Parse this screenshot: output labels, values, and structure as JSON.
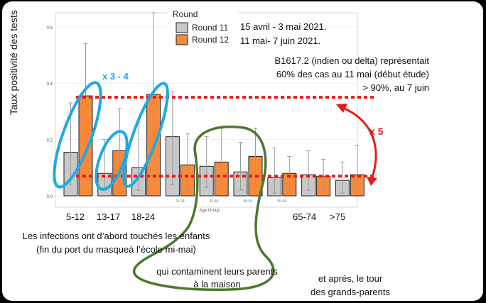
{
  "chart_data": {
    "type": "bar",
    "ylabel": "Taux positivité des tests",
    "xlabel": "Age Group",
    "ylim": [
      0,
      0.65
    ],
    "y_ticks": [
      "0.0",
      "0.2",
      "0.4",
      "0.6"
    ],
    "categories": [
      "5-12",
      "13-17",
      "18-24",
      "25-34",
      "35-44",
      "45-54",
      "55-64",
      "65-74",
      ">75"
    ],
    "category_labels_small": [
      "25-34",
      "35-44",
      "45-54",
      "55-64"
    ],
    "series": [
      {
        "name": "Round 11",
        "color": "#c8c8c8",
        "values": [
          0.155,
          0.08,
          0.1,
          0.21,
          0.105,
          0.085,
          0.065,
          0.075,
          0.055
        ],
        "ci_low": [
          0.04,
          0.02,
          0.02,
          0.04,
          0.03,
          0.02,
          0.01,
          0.02,
          0.01
        ],
        "ci_high": [
          0.33,
          0.2,
          0.26,
          0.37,
          0.21,
          0.19,
          0.17,
          0.16,
          0.12
        ]
      },
      {
        "name": "Round 12",
        "color": "#f58a3c",
        "values": [
          0.355,
          0.16,
          0.36,
          0.11,
          0.12,
          0.14,
          0.08,
          0.07,
          0.075
        ],
        "ci_low": [
          0.1,
          0.05,
          0.12,
          0.02,
          0.03,
          0.03,
          0.02,
          0.02,
          0.02
        ],
        "ci_high": [
          0.54,
          0.31,
          0.65,
          0.22,
          0.24,
          0.24,
          0.14,
          0.13,
          0.18
        ]
      }
    ],
    "legend": {
      "title": "Round",
      "items": [
        "Round 11",
        "Round 12"
      ],
      "placement": "top-center"
    },
    "reference_lines": [
      0.35,
      0.07
    ]
  },
  "annotations": {
    "round11_dates": "15 avril - 3 mai 2021.",
    "round12_dates": "11 mai- 7 juin 2021.",
    "variant_line1": "B1617.2 (indien ou delta) représentait",
    "variant_line2": "60% des cas au 11 mai (début étude)",
    "variant_line3": "> 90%, au 7 juin",
    "multiplier_blue": "x 3 - 4",
    "multiplier_red": "x 5",
    "children_line1": "Les infections ont d’abord touchés les enfants",
    "children_line2": "(fin du port du masqueà l’école  mi-mai)",
    "parents_line1": "qui contaminent leurs parents",
    "parents_line2": "à la maison",
    "grandparents_line1": "et après, le tour",
    "grandparents_line2": "des grands-parents"
  },
  "colors": {
    "highlight_blue": "#1ea8e6",
    "highlight_green": "#4a7a2c",
    "highlight_red": "#e31b1b"
  }
}
